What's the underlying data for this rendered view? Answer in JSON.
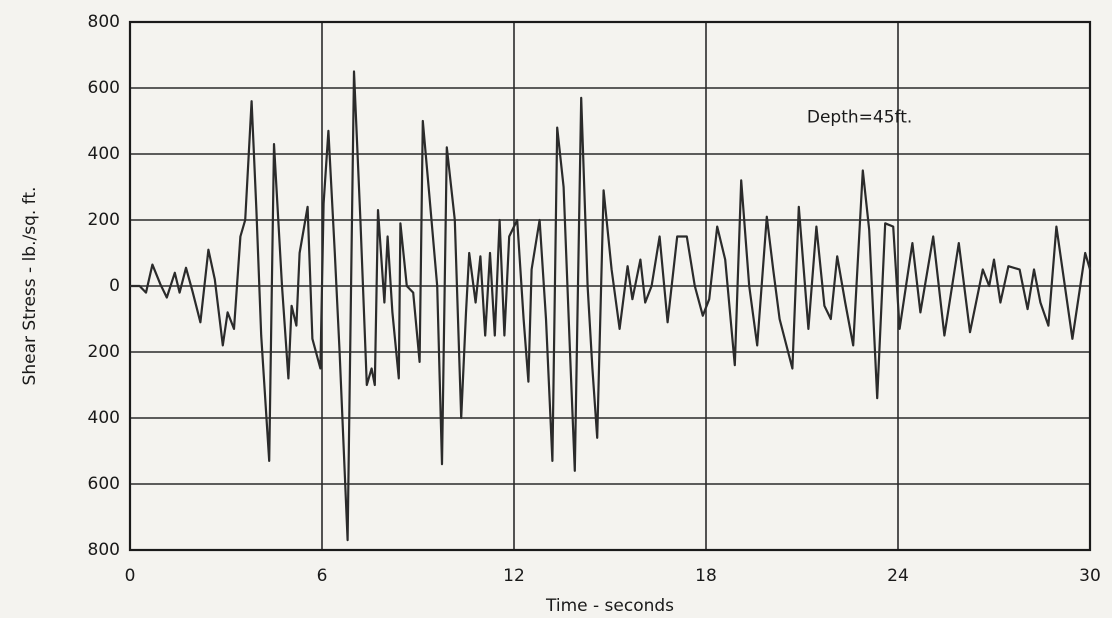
{
  "chart_data": {
    "type": "line",
    "x_label": "Time - seconds",
    "y_label": "Shear Stress - lb./sq. ft.",
    "annotation": "Depth=45ft.",
    "color": "#2b2b2b",
    "grid": true,
    "xlim": [
      0,
      30
    ],
    "xticks": [
      0,
      6,
      12,
      18,
      24,
      30
    ],
    "ylim": [
      -800,
      800
    ],
    "yticks": [
      {
        "value": -800,
        "label": "800"
      },
      {
        "value": -600,
        "label": "600"
      },
      {
        "value": -400,
        "label": "400"
      },
      {
        "value": -200,
        "label": "200"
      },
      0,
      200,
      400,
      600,
      800
    ],
    "x": [
      0,
      0.3,
      0.5,
      0.7,
      0.95,
      1.15,
      1.4,
      1.55,
      1.75,
      1.95,
      2.2,
      2.45,
      2.65,
      2.9,
      3.05,
      3.25,
      3.45,
      3.6,
      3.8,
      3.95,
      4.1,
      4.35,
      4.5,
      4.75,
      4.95,
      5.05,
      5.2,
      5.3,
      5.55,
      5.7,
      5.95,
      6.05,
      6.2,
      6.4,
      6.55,
      6.8,
      7.0,
      7.2,
      7.4,
      7.55,
      7.65,
      7.75,
      7.95,
      8.05,
      8.2,
      8.4,
      8.45,
      8.65,
      8.85,
      9.05,
      9.15,
      9.35,
      9.6,
      9.75,
      9.9,
      10.15,
      10.35,
      10.5,
      10.6,
      10.8,
      10.95,
      11.1,
      11.25,
      11.4,
      11.55,
      11.7,
      11.85,
      12.1,
      12.3,
      12.45,
      12.55,
      12.8,
      13.0,
      13.2,
      13.35,
      13.55,
      13.75,
      13.9,
      14.1,
      14.3,
      14.45,
      14.6,
      14.8,
      15.05,
      15.3,
      15.55,
      15.7,
      15.95,
      16.1,
      16.3,
      16.55,
      16.8,
      17.1,
      17.4,
      17.65,
      17.9,
      18.1,
      18.35,
      18.6,
      18.9,
      19.1,
      19.35,
      19.6,
      19.9,
      20.1,
      20.3,
      20.7,
      20.9,
      21.2,
      21.45,
      21.7,
      21.9,
      22.1,
      22.35,
      22.6,
      22.9,
      23.1,
      23.35,
      23.6,
      23.85,
      24.05,
      24.45,
      24.7,
      25.1,
      25.45,
      25.9,
      26.25,
      26.65,
      26.85,
      27.0,
      27.2,
      27.45,
      27.8,
      28.05,
      28.25,
      28.45,
      28.7,
      28.95,
      29.45,
      29.85,
      30
    ],
    "values": [
      0,
      0,
      -20,
      65,
      5,
      -35,
      40,
      -20,
      55,
      -15,
      -110,
      110,
      20,
      -180,
      -80,
      -130,
      150,
      200,
      560,
      230,
      -150,
      -530,
      430,
      0,
      -280,
      -60,
      -120,
      100,
      240,
      -160,
      -250,
      250,
      470,
      100,
      -200,
      -770,
      650,
      200,
      -300,
      -250,
      -300,
      230,
      -50,
      150,
      -80,
      -280,
      190,
      0,
      -20,
      -230,
      500,
      280,
      0,
      -540,
      420,
      200,
      -400,
      -80,
      100,
      -50,
      90,
      -150,
      100,
      -150,
      200,
      -150,
      150,
      200,
      -100,
      -290,
      50,
      200,
      -100,
      -530,
      480,
      300,
      -200,
      -560,
      570,
      0,
      -250,
      -460,
      290,
      50,
      -130,
      60,
      -40,
      80,
      -50,
      0,
      150,
      -110,
      150,
      150,
      0,
      -90,
      -40,
      180,
      80,
      -240,
      320,
      0,
      -180,
      210,
      50,
      -100,
      -250,
      240,
      -130,
      180,
      -60,
      -100,
      90,
      -50,
      -180,
      350,
      170,
      -340,
      190,
      180,
      -130,
      130,
      -80,
      150,
      -150,
      130,
      -140,
      50,
      0,
      80,
      -50,
      60,
      50,
      -70,
      50,
      -50,
      -120,
      180,
      -160,
      100,
      50
    ]
  }
}
